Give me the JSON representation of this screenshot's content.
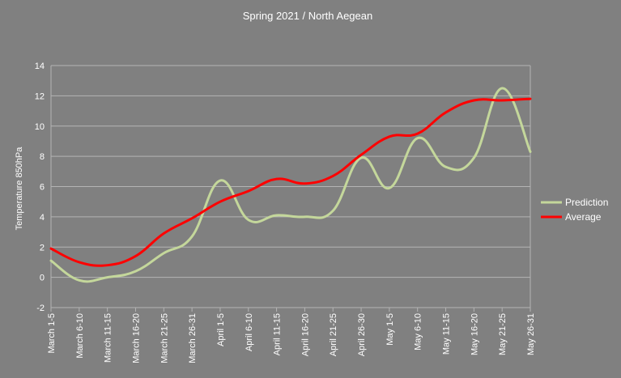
{
  "chart_data": {
    "type": "line",
    "title": "Spring 2021 / North Aegean",
    "xlabel": "",
    "ylabel": "Temperature 850hPa",
    "ylim": [
      -2,
      14
    ],
    "yticks": [
      -2,
      0,
      2,
      4,
      6,
      8,
      10,
      12,
      14
    ],
    "grid": "horizontal",
    "legend_position": "right",
    "categories": [
      "March 1-5",
      "March 6-10",
      "March 11-15",
      "March 16-20",
      "March 21-25",
      "March 26-31",
      "April 1-5",
      "April 6-10",
      "April 11-15",
      "April 16-20",
      "April 21-25",
      "April 26-30",
      "May 1-5",
      "May 6-10",
      "May 11-15",
      "May 16-20",
      "May 21-25",
      "May 26-31"
    ],
    "series": [
      {
        "name": "Prediction",
        "color": "#c4d79b",
        "values": [
          1.1,
          -0.2,
          0.0,
          0.4,
          1.6,
          2.7,
          6.4,
          3.8,
          4.1,
          4.0,
          4.4,
          7.9,
          5.9,
          9.2,
          7.3,
          7.9,
          12.5,
          8.3
        ]
      },
      {
        "name": "Average",
        "color": "#ff0000",
        "values": [
          1.9,
          1.0,
          0.8,
          1.4,
          2.9,
          3.9,
          5.0,
          5.7,
          6.5,
          6.2,
          6.7,
          8.1,
          9.3,
          9.5,
          10.9,
          11.7,
          11.7,
          11.8
        ]
      }
    ]
  }
}
